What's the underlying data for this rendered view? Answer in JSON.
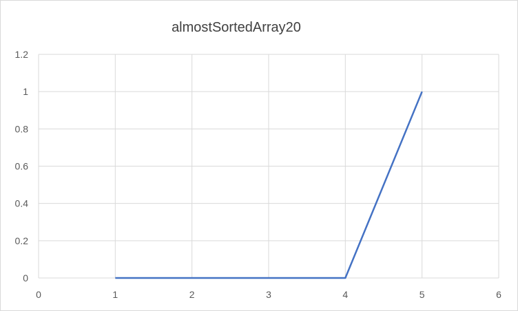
{
  "chart_data": {
    "type": "line",
    "title": "almostSortedArray20",
    "xlabel": "",
    "ylabel": "",
    "xlim": [
      0,
      6
    ],
    "ylim": [
      0,
      1.2
    ],
    "x_ticks": [
      "0",
      "1",
      "2",
      "3",
      "4",
      "5",
      "6"
    ],
    "y_ticks": [
      "0",
      "0.2",
      "0.4",
      "0.6",
      "0.8",
      "1",
      "1.2"
    ],
    "grid": true,
    "legend": "none",
    "series": [
      {
        "color": "#4472c4",
        "x": [
          1,
          2,
          3,
          4,
          5
        ],
        "y": [
          0,
          0,
          0,
          0,
          1
        ]
      }
    ]
  }
}
